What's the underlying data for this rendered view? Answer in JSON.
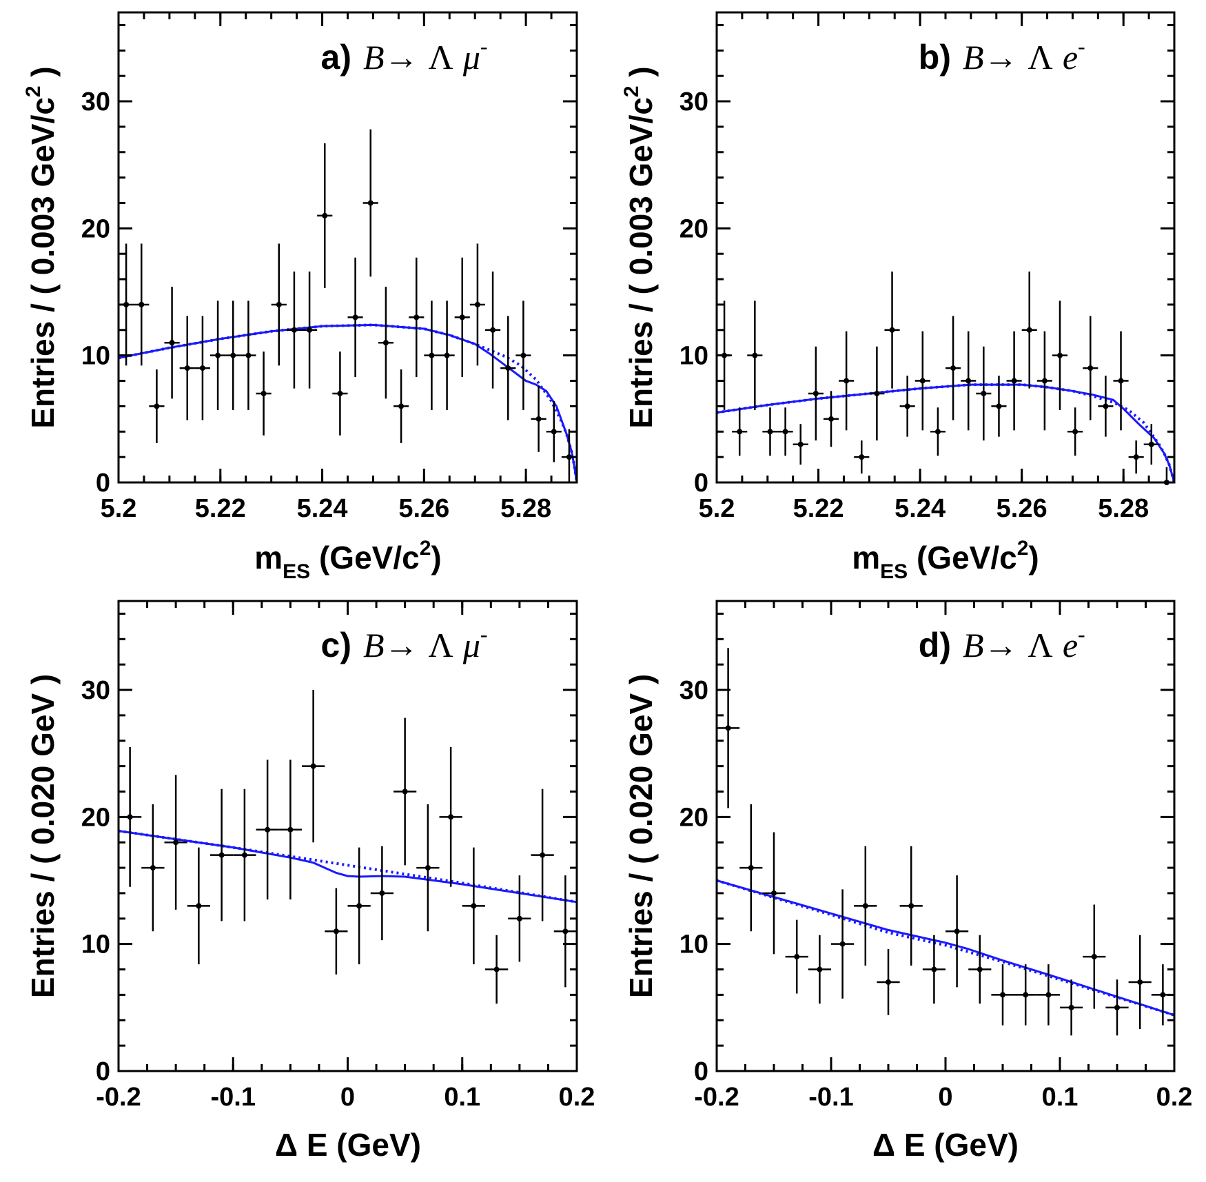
{
  "chart_data": [
    {
      "type": "scatter",
      "id": "a",
      "label": "a)",
      "decay": {
        "B": "B",
        "arrow": "→",
        "baryon": "Λ",
        "lepton": "μ",
        "charge": "-"
      },
      "xlabel": {
        "main": "m",
        "sub": "ES",
        "unit_open": " (GeV/c",
        "sup": "2",
        "unit_close": ")"
      },
      "ylabel": {
        "main": "Entries / ( 0.003 GeV/c",
        "sup": "2",
        "close": " )"
      },
      "xlim": [
        5.2,
        5.29
      ],
      "ylim": [
        0,
        37
      ],
      "xticks": [
        5.2,
        5.22,
        5.24,
        5.26,
        5.28
      ],
      "xtick_labels": [
        "5.2",
        "5.22",
        "5.24",
        "5.26",
        "5.28"
      ],
      "yticks": [
        0,
        10,
        20,
        30
      ],
      "ytick_labels": [
        "0",
        "10",
        "20",
        "30"
      ],
      "bin_width": 0.003,
      "x": [
        5.2015,
        5.2045,
        5.2075,
        5.2105,
        5.2135,
        5.2165,
        5.2195,
        5.2225,
        5.2255,
        5.2285,
        5.2315,
        5.2345,
        5.2375,
        5.2405,
        5.2435,
        5.2465,
        5.2495,
        5.2525,
        5.2555,
        5.2585,
        5.2615,
        5.2645,
        5.2675,
        5.2705,
        5.2735,
        5.2765,
        5.2795,
        5.2825,
        5.2855,
        5.2885
      ],
      "values": [
        14,
        14,
        6,
        11,
        9,
        9,
        10,
        10,
        10,
        7,
        14,
        12,
        12,
        21,
        7,
        13,
        22,
        11,
        6,
        13,
        10,
        10,
        13,
        14,
        12,
        9,
        10,
        5,
        4,
        2
      ],
      "errors": [
        4.8,
        4.8,
        2.9,
        4.4,
        4.1,
        4.1,
        4.3,
        4.3,
        4.3,
        3.3,
        4.8,
        4.6,
        4.6,
        5.7,
        3.3,
        4.7,
        5.8,
        4.4,
        2.9,
        4.7,
        4.3,
        4.3,
        4.7,
        4.8,
        4.6,
        4.1,
        4.3,
        2.6,
        2.4,
        2.2
      ],
      "fit_total": {
        "x": [
          5.2,
          5.21,
          5.22,
          5.23,
          5.24,
          5.25,
          5.26,
          5.265,
          5.27,
          5.273,
          5.276,
          5.279,
          5.28,
          5.282,
          5.284,
          5.286,
          5.288,
          5.289,
          5.2895,
          5.29
        ],
        "y": [
          9.8,
          10.6,
          11.3,
          11.9,
          12.3,
          12.4,
          12.1,
          11.6,
          10.9,
          10.1,
          9.2,
          8.3,
          8.0,
          7.7,
          7.2,
          6.0,
          3.8,
          2.4,
          1.3,
          0
        ]
      },
      "fit_bkg": {
        "x": [
          5.2,
          5.21,
          5.22,
          5.23,
          5.24,
          5.25,
          5.26,
          5.265,
          5.27,
          5.273,
          5.276,
          5.279,
          5.282,
          5.285,
          5.287,
          5.288,
          5.289,
          5.2895,
          5.29
        ],
        "y": [
          9.8,
          10.6,
          11.3,
          11.9,
          12.3,
          12.4,
          12.1,
          11.6,
          10.9,
          10.4,
          9.9,
          9.2,
          8.1,
          6.4,
          4.8,
          3.8,
          2.4,
          1.3,
          0
        ]
      }
    },
    {
      "type": "scatter",
      "id": "b",
      "label": "b)",
      "decay": {
        "B": "B",
        "arrow": "→",
        "baryon": "Λ",
        "lepton": "e",
        "charge": "-"
      },
      "xlabel": {
        "main": "m",
        "sub": "ES",
        "unit_open": " (GeV/c",
        "sup": "2",
        "unit_close": ")"
      },
      "ylabel": {
        "main": "Entries / ( 0.003 GeV/c",
        "sup": "2",
        "close": " )"
      },
      "xlim": [
        5.2,
        5.29
      ],
      "ylim": [
        0,
        37
      ],
      "xticks": [
        5.2,
        5.22,
        5.24,
        5.26,
        5.28
      ],
      "xtick_labels": [
        "5.2",
        "5.22",
        "5.24",
        "5.26",
        "5.28"
      ],
      "yticks": [
        0,
        10,
        20,
        30
      ],
      "ytick_labels": [
        "0",
        "10",
        "20",
        "30"
      ],
      "bin_width": 0.003,
      "x": [
        5.2015,
        5.2045,
        5.2075,
        5.2105,
        5.2135,
        5.2165,
        5.2195,
        5.2225,
        5.2255,
        5.2285,
        5.2315,
        5.2345,
        5.2375,
        5.2405,
        5.2435,
        5.2465,
        5.2495,
        5.2525,
        5.2555,
        5.2585,
        5.2615,
        5.2645,
        5.2675,
        5.2705,
        5.2735,
        5.2765,
        5.2795,
        5.2825,
        5.2855,
        5.2885
      ],
      "values": [
        10,
        4,
        10,
        4,
        4,
        3,
        7,
        5,
        8,
        2,
        7,
        12,
        6,
        8,
        4,
        9,
        8,
        7,
        6,
        8,
        12,
        8,
        10,
        4,
        9,
        6,
        8,
        2,
        3,
        0
      ],
      "errors": [
        4.3,
        1.9,
        4.3,
        1.9,
        1.9,
        1.6,
        3.7,
        2.2,
        3.9,
        1.3,
        3.7,
        4.6,
        2.4,
        3.9,
        1.9,
        4.1,
        3.9,
        3.7,
        2.4,
        3.9,
        4.6,
        3.9,
        4.3,
        1.9,
        4.1,
        2.4,
        3.9,
        1.3,
        1.6,
        1.2
      ],
      "fit_total": {
        "x": [
          5.2,
          5.21,
          5.22,
          5.23,
          5.24,
          5.25,
          5.26,
          5.265,
          5.27,
          5.274,
          5.278,
          5.28,
          5.283,
          5.286,
          5.288,
          5.289,
          5.2895,
          5.29
        ],
        "y": [
          5.5,
          6.1,
          6.6,
          7.0,
          7.4,
          7.7,
          7.7,
          7.5,
          7.2,
          6.9,
          6.5,
          5.8,
          4.6,
          3.5,
          2.3,
          1.4,
          0.7,
          0
        ]
      },
      "fit_bkg": {
        "x": [
          5.2,
          5.21,
          5.22,
          5.23,
          5.24,
          5.25,
          5.26,
          5.265,
          5.27,
          5.274,
          5.278,
          5.281,
          5.284,
          5.287,
          5.288,
          5.289,
          5.2895,
          5.29
        ],
        "y": [
          5.5,
          6.1,
          6.6,
          7.0,
          7.4,
          7.7,
          7.7,
          7.5,
          7.2,
          6.8,
          6.3,
          5.7,
          4.7,
          3.0,
          2.3,
          1.4,
          0.7,
          0
        ]
      }
    },
    {
      "type": "scatter",
      "id": "c",
      "label": "c)",
      "decay": {
        "B": "B",
        "arrow": "→",
        "baryon": "Λ",
        "lepton": "μ",
        "charge": "-"
      },
      "xlabel": {
        "main": "Δ E (GeV)",
        "sub": "",
        "unit_open": "",
        "sup": "",
        "unit_close": ""
      },
      "ylabel": {
        "main": "Entries / ( 0.020 GeV )",
        "sup": "",
        "close": ""
      },
      "xlim": [
        -0.2,
        0.2
      ],
      "ylim": [
        0,
        37
      ],
      "xticks": [
        -0.2,
        -0.1,
        0,
        0.1,
        0.2
      ],
      "xtick_labels": [
        "-0.2",
        "-0.1",
        "0",
        "0.1",
        "0.2"
      ],
      "yticks": [
        0,
        10,
        20,
        30
      ],
      "ytick_labels": [
        "0",
        "10",
        "20",
        "30"
      ],
      "bin_width": 0.02,
      "x": [
        -0.19,
        -0.17,
        -0.15,
        -0.13,
        -0.11,
        -0.09,
        -0.07,
        -0.05,
        -0.03,
        -0.01,
        0.01,
        0.03,
        0.05,
        0.07,
        0.09,
        0.11,
        0.13,
        0.15,
        0.17,
        0.19
      ],
      "values": [
        20,
        16,
        18,
        13,
        17,
        17,
        19,
        19,
        24,
        11,
        13,
        14,
        22,
        16,
        20,
        13,
        8,
        12,
        17,
        11
      ],
      "errors": [
        5.5,
        5.0,
        5.3,
        4.6,
        5.2,
        5.2,
        5.5,
        5.5,
        6.0,
        3.4,
        4.6,
        3.7,
        5.8,
        5.0,
        5.5,
        4.6,
        2.7,
        3.4,
        5.2,
        4.4
      ],
      "fit_total": {
        "x": [
          -0.2,
          -0.1,
          -0.05,
          -0.03,
          -0.02,
          -0.01,
          0,
          0.01,
          0.03,
          0.05,
          0.1,
          0.2
        ],
        "y": [
          18.9,
          17.6,
          16.8,
          16.4,
          16.0,
          15.6,
          15.35,
          15.3,
          15.35,
          15.3,
          14.7,
          13.3
        ]
      },
      "fit_bkg": {
        "x": [
          -0.2,
          -0.1,
          0,
          0.1,
          0.2
        ],
        "y": [
          18.9,
          17.6,
          16.2,
          14.8,
          13.3
        ]
      }
    },
    {
      "type": "scatter",
      "id": "d",
      "label": "d)",
      "decay": {
        "B": "B",
        "arrow": "→",
        "baryon": "Λ",
        "lepton": "e",
        "charge": "-"
      },
      "xlabel": {
        "main": "Δ E (GeV)",
        "sub": "",
        "unit_open": "",
        "sup": "",
        "unit_close": ""
      },
      "ylabel": {
        "main": "Entries / ( 0.020 GeV )",
        "sup": "",
        "close": ""
      },
      "xlim": [
        -0.2,
        0.2
      ],
      "ylim": [
        0,
        37
      ],
      "xticks": [
        -0.2,
        -0.1,
        0,
        0.1,
        0.2
      ],
      "xtick_labels": [
        "-0.2",
        "-0.1",
        "0",
        "0.1",
        "0.2"
      ],
      "yticks": [
        0,
        10,
        20,
        30
      ],
      "ytick_labels": [
        "0",
        "10",
        "20",
        "30"
      ],
      "bin_width": 0.02,
      "x": [
        -0.19,
        -0.17,
        -0.15,
        -0.13,
        -0.11,
        -0.09,
        -0.07,
        -0.05,
        -0.03,
        -0.01,
        0.01,
        0.03,
        0.05,
        0.07,
        0.09,
        0.11,
        0.13,
        0.15,
        0.17,
        0.19
      ],
      "values": [
        27,
        16,
        14,
        9,
        8,
        10,
        13,
        7,
        13,
        8,
        11,
        8,
        6,
        6,
        6,
        5,
        9,
        5,
        7,
        6
      ],
      "errors": [
        6.3,
        5.0,
        4.8,
        2.9,
        2.7,
        4.3,
        4.7,
        2.6,
        4.7,
        2.7,
        4.4,
        2.7,
        2.4,
        2.4,
        2.4,
        2.2,
        4.1,
        2.2,
        3.7,
        2.4
      ],
      "fit_total": {
        "x": [
          -0.2,
          -0.1,
          -0.05,
          0,
          0.02,
          0.05,
          0.1,
          0.2
        ],
        "y": [
          15.0,
          12.4,
          11.1,
          10.1,
          9.6,
          8.7,
          7.3,
          4.4
        ]
      },
      "fit_bkg": {
        "x": [
          -0.2,
          -0.1,
          -0.05,
          0,
          0.05,
          0.1,
          0.2
        ],
        "y": [
          15.0,
          12.3,
          10.9,
          9.9,
          8.6,
          7.2,
          4.4
        ]
      }
    }
  ]
}
